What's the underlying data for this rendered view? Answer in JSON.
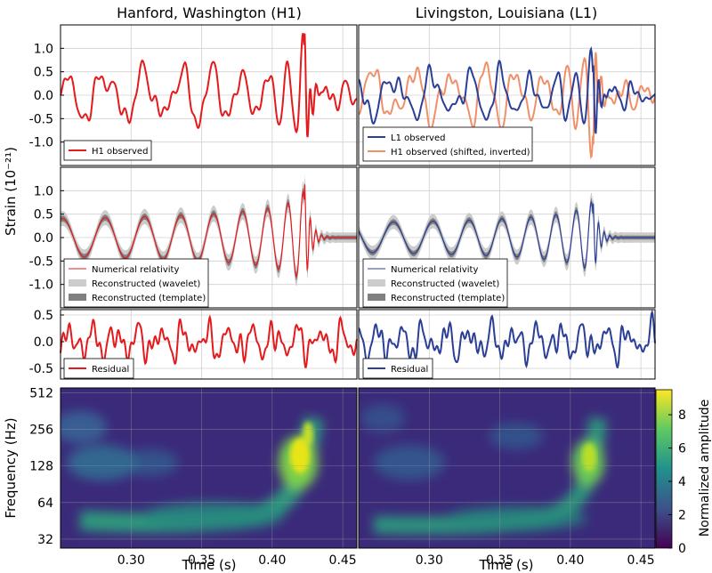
{
  "titles": {
    "left": "Hanford, Washington (H1)",
    "right": "Livingston, Louisiana (L1)"
  },
  "ylabels": {
    "strain": "Strain (10⁻²¹)",
    "frequency": "Frequency (Hz)"
  },
  "xlabel": "Time (s)",
  "colorbar_label": "Normalized amplitude",
  "colors": {
    "h1": "#e41a1c",
    "l1": "#2b3f97",
    "h1_shifted": "#f0906a",
    "wavelet": "#cccccc",
    "template": "#808080",
    "grid": "#d0d0d0"
  },
  "chart_data": [
    {
      "type": "line",
      "panel": "h1-observed",
      "x_range": [
        0.25,
        0.46
      ],
      "ylim": [
        -1.5,
        1.5
      ],
      "yticks": [
        "1.0",
        "0.5",
        "0.0",
        "-0.5",
        "-1.0"
      ],
      "ytick_values": [
        1.0,
        0.5,
        0.0,
        -0.5,
        -1.0
      ],
      "legend": [
        "H1 observed"
      ],
      "series": [
        {
          "name": "H1 observed",
          "x": [
            0.25,
            0.27,
            0.29,
            0.31,
            0.33,
            0.35,
            0.37,
            0.39,
            0.4,
            0.41,
            0.42,
            0.43,
            0.45,
            0.46
          ],
          "y": [
            0.0,
            -0.3,
            0.3,
            -0.2,
            0.2,
            -0.6,
            0.8,
            -1.1,
            1.2,
            -1.2,
            1.0,
            -0.4,
            0.1,
            0.0
          ]
        }
      ]
    },
    {
      "type": "line",
      "panel": "l1-observed",
      "x_range": [
        0.25,
        0.46
      ],
      "ylim": [
        -1.5,
        1.5
      ],
      "legend": [
        "L1 observed",
        "H1 observed (shifted, inverted)"
      ],
      "series": [
        {
          "name": "L1 observed",
          "x": [
            0.25,
            0.29,
            0.33,
            0.37,
            0.39,
            0.41,
            0.42,
            0.44,
            0.46
          ],
          "y": [
            0.0,
            0.3,
            -0.3,
            0.7,
            -1.0,
            1.0,
            -0.8,
            0.2,
            0.0
          ]
        },
        {
          "name": "H1 observed (shifted, inverted)",
          "x": [
            0.25,
            0.29,
            0.33,
            0.37,
            0.39,
            0.41,
            0.42,
            0.44,
            0.46
          ],
          "y": [
            0.0,
            0.3,
            -0.3,
            0.8,
            -1.2,
            1.1,
            -0.9,
            0.3,
            0.0
          ]
        }
      ]
    },
    {
      "type": "line",
      "panel": "h1-reconstructed",
      "x_range": [
        0.25,
        0.46
      ],
      "ylim": [
        -1.5,
        1.5
      ],
      "yticks": [
        "1.0",
        "0.5",
        "0.0",
        "-0.5",
        "-1.0"
      ],
      "ytick_values": [
        1.0,
        0.5,
        0.0,
        -0.5,
        -1.0
      ],
      "legend": [
        "Numerical relativity",
        "Reconstructed (wavelet)",
        "Reconstructed (template)"
      ],
      "series": [
        {
          "name": "Numerical relativity",
          "x": [
            0.25,
            0.33,
            0.37,
            0.39,
            0.41,
            0.42,
            0.425,
            0.435,
            0.46
          ],
          "y": [
            0.0,
            0.15,
            -0.35,
            0.6,
            -0.95,
            1.1,
            -1.2,
            0.1,
            0.0
          ]
        }
      ]
    },
    {
      "type": "line",
      "panel": "l1-reconstructed",
      "x_range": [
        0.25,
        0.46
      ],
      "ylim": [
        -1.5,
        1.5
      ],
      "legend": [
        "Numerical relativity",
        "Reconstructed (wavelet)",
        "Reconstructed (template)"
      ],
      "series": [
        {
          "name": "Numerical relativity",
          "x": [
            0.25,
            0.33,
            0.37,
            0.39,
            0.41,
            0.415,
            0.425,
            0.46
          ],
          "y": [
            0.0,
            0.1,
            -0.35,
            0.6,
            -0.9,
            0.8,
            -0.2,
            0.0
          ]
        }
      ]
    },
    {
      "type": "line",
      "panel": "h1-residual",
      "x_range": [
        0.25,
        0.46
      ],
      "ylim": [
        -0.7,
        0.6
      ],
      "yticks": [
        "0.5",
        "0.0",
        "-0.5"
      ],
      "ytick_values": [
        0.5,
        0.0,
        -0.5
      ],
      "legend": [
        "Residual"
      ],
      "series": [
        {
          "name": "Residual",
          "x": [
            0.25,
            0.3,
            0.35,
            0.4,
            0.46
          ],
          "y": [
            0.0,
            0.3,
            -0.3,
            0.3,
            0.0
          ]
        }
      ]
    },
    {
      "type": "line",
      "panel": "l1-residual",
      "x_range": [
        0.25,
        0.46
      ],
      "ylim": [
        -0.7,
        0.6
      ],
      "legend": [
        "Residual"
      ],
      "series": [
        {
          "name": "Residual",
          "x": [
            0.25,
            0.3,
            0.35,
            0.4,
            0.46
          ],
          "y": [
            0.0,
            0.2,
            -0.2,
            0.2,
            0.0
          ]
        }
      ]
    },
    {
      "type": "heatmap",
      "panel": "h1-spectrogram",
      "x_range": [
        0.25,
        0.46
      ],
      "ylim_hz": [
        27,
        560
      ],
      "y_scale": "log2",
      "xticks": [
        "0.30",
        "0.35",
        "0.40",
        "0.45"
      ],
      "xtick_values": [
        0.3,
        0.35,
        0.4,
        0.45
      ],
      "yticks": [
        "512",
        "256",
        "128",
        "64",
        "32"
      ],
      "ytick_values": [
        512,
        256,
        128,
        64,
        32
      ],
      "track": [
        [
          0.3,
          36
        ],
        [
          0.34,
          38
        ],
        [
          0.37,
          44
        ],
        [
          0.39,
          55
        ],
        [
          0.41,
          75
        ],
        [
          0.42,
          105
        ],
        [
          0.425,
          150
        ],
        [
          0.43,
          260
        ]
      ],
      "peak": {
        "time": 0.42,
        "freq": 130,
        "amplitude": 9
      }
    },
    {
      "type": "heatmap",
      "panel": "l1-spectrogram",
      "x_range": [
        0.25,
        0.46
      ],
      "ylim_hz": [
        27,
        560
      ],
      "y_scale": "log2",
      "xticks": [
        "0.30",
        "0.35",
        "0.40",
        "0.45"
      ],
      "xtick_values": [
        0.3,
        0.35,
        0.4,
        0.45
      ],
      "track": [
        [
          0.3,
          36
        ],
        [
          0.34,
          38
        ],
        [
          0.37,
          44
        ],
        [
          0.39,
          55
        ],
        [
          0.405,
          75
        ],
        [
          0.415,
          110
        ],
        [
          0.42,
          250
        ]
      ],
      "peak": {
        "time": 0.415,
        "freq": 120,
        "amplitude": 7
      }
    },
    {
      "type": "colorbar",
      "panel": "colorbar",
      "range": [
        0,
        9.5
      ],
      "ticks": [
        "8",
        "6",
        "4",
        "2",
        "0"
      ],
      "tick_values": [
        8,
        6,
        4,
        2,
        0
      ]
    }
  ]
}
